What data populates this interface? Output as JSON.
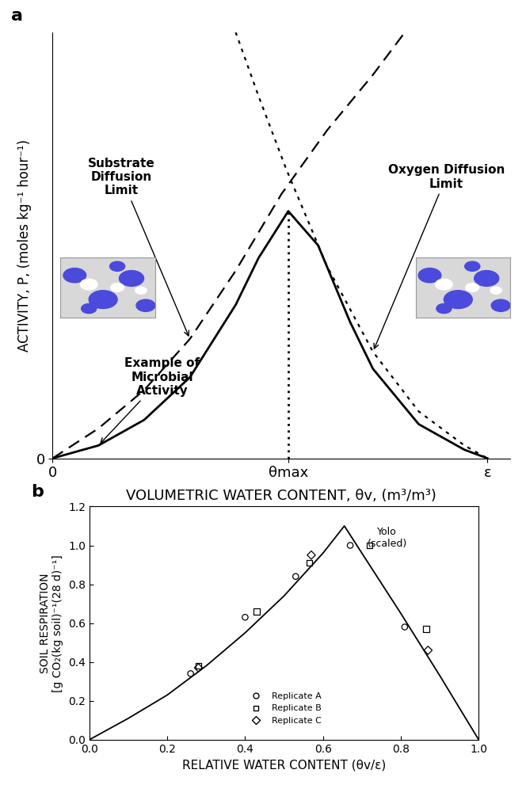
{
  "chart_data": [
    {
      "type": "line",
      "panel_label": "a",
      "x_label": "VOLUMETRIC WATER CONTENT, θv, (m³/m³)",
      "y_label": "ACTIVITY, P, (moles kg⁻¹ hour⁻¹)",
      "xlim": [
        0,
        1
      ],
      "ylim": [
        0,
        1
      ],
      "xticks": [
        0,
        {
          "value": 0.515,
          "label": "θmax"
        },
        {
          "value": 0.95,
          "label": "ε"
        }
      ],
      "yticks": [
        0
      ],
      "grid": false,
      "series": [
        {
          "label": "Substrate\nDiffusion\nLimit",
          "color": "#000000",
          "line_style": "dashed",
          "x": [
            0,
            0.1,
            0.2,
            0.3,
            0.4,
            0.5,
            0.6,
            0.7,
            0.77
          ],
          "values": [
            0,
            0.07,
            0.16,
            0.28,
            0.44,
            0.62,
            0.77,
            0.9,
            1.0
          ]
        },
        {
          "label": "Oxygen Diffusion\nLimit",
          "color": "#000000",
          "line_style": "dotted",
          "x": [
            0.4,
            0.45,
            0.51,
            0.6,
            0.7,
            0.8,
            0.9,
            0.95
          ],
          "values": [
            1.0,
            0.85,
            0.68,
            0.45,
            0.25,
            0.11,
            0.03,
            0
          ]
        },
        {
          "label": "Example of\nMicrobial\nActivity",
          "color": "#000000",
          "line_style": "solid",
          "x": [
            0,
            0.1,
            0.2,
            0.3,
            0.4,
            0.45,
            0.515,
            0.58,
            0.65,
            0.7,
            0.8,
            0.9,
            0.95
          ],
          "values": [
            0,
            0.03,
            0.09,
            0.19,
            0.36,
            0.47,
            0.58,
            0.5,
            0.32,
            0.21,
            0.08,
            0.02,
            0
          ]
        }
      ]
    },
    {
      "type": "scatter",
      "panel_label": "b",
      "x_label": "RELATIVE WATER CONTENT (θv/ε)",
      "y_label": "SOIL RESPIRATION\n[g CO₂(kg soil)⁻¹(28 d)⁻¹]",
      "xlim": [
        0.0,
        1.0
      ],
      "ylim": [
        0.0,
        1.2
      ],
      "xticks": [
        0.0,
        0.2,
        0.4,
        0.6,
        0.8,
        1.0
      ],
      "yticks": [
        0.0,
        0.2,
        0.4,
        0.6,
        0.8,
        1.0,
        1.2
      ],
      "grid": false,
      "legend": "lower center",
      "series": [
        {
          "name": "Replicate A",
          "color": "#000000",
          "marker": "circle",
          "x": [
            0.26,
            0.4,
            0.53,
            0.67,
            0.81
          ],
          "values": [
            0.34,
            0.63,
            0.84,
            1.0,
            0.58
          ]
        },
        {
          "name": "Replicate B",
          "color": "#000000",
          "marker": "square",
          "x": [
            0.28,
            0.43,
            0.565,
            0.72,
            0.865
          ],
          "values": [
            0.38,
            0.66,
            0.91,
            1.0,
            0.57
          ]
        },
        {
          "name": "Replicate C",
          "color": "#000000",
          "marker": "diamond",
          "x": [
            0.28,
            0.57,
            0.87
          ],
          "values": [
            0.37,
            0.95,
            0.46
          ]
        },
        {
          "label": "Yolo\n(scaled)",
          "type": "line",
          "color": "#000000",
          "line_style": "solid",
          "x": [
            0,
            0.1,
            0.2,
            0.3,
            0.4,
            0.5,
            0.6,
            0.655,
            0.7,
            0.8,
            0.9,
            1.0
          ],
          "values": [
            0,
            0.11,
            0.23,
            0.38,
            0.55,
            0.74,
            0.96,
            1.1,
            0.96,
            0.65,
            0.33,
            0.0
          ]
        }
      ]
    }
  ]
}
